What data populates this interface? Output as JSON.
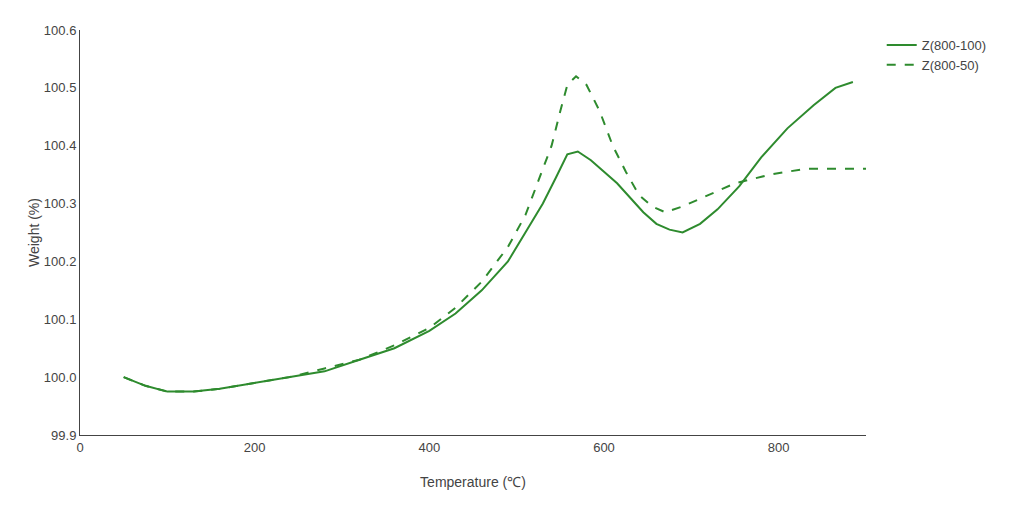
{
  "chart_data": {
    "type": "line",
    "xlabel": "Temperature (℃)",
    "ylabel": "Weight (%)",
    "xlim": [
      0,
      900
    ],
    "ylim": [
      99.9,
      100.6
    ],
    "xticks": [
      0,
      200,
      400,
      600,
      800
    ],
    "yticks": [
      99.9,
      {
        "value": 100.0,
        "label": "100.0"
      },
      100.1,
      100.2,
      100.3,
      100.4,
      100.5,
      100.6
    ],
    "grid": false,
    "legend": "upper right",
    "series": [
      {
        "name": "Z(800-100)",
        "color": "#2e8b2e",
        "line_style": "solid",
        "x": [
          50,
          75,
          100,
          130,
          160,
          200,
          240,
          280,
          320,
          360,
          400,
          430,
          460,
          490,
          510,
          530,
          545,
          558,
          570,
          585,
          600,
          615,
          630,
          645,
          660,
          675,
          690,
          710,
          730,
          755,
          780,
          810,
          840,
          865,
          885
        ],
        "values": [
          100.0,
          99.985,
          99.975,
          99.975,
          99.98,
          99.99,
          100.0,
          100.01,
          100.03,
          100.05,
          100.08,
          100.11,
          100.15,
          100.2,
          100.25,
          100.3,
          100.345,
          100.385,
          100.39,
          100.375,
          100.355,
          100.335,
          100.31,
          100.285,
          100.265,
          100.255,
          100.25,
          100.265,
          100.29,
          100.33,
          100.38,
          100.43,
          100.47,
          100.5,
          100.51
        ]
      },
      {
        "name": "Z(800-50)",
        "color": "#2e8b2e",
        "line_style": "dashed",
        "x": [
          50,
          75,
          100,
          130,
          160,
          200,
          240,
          280,
          320,
          360,
          400,
          430,
          460,
          490,
          510,
          525,
          540,
          550,
          558,
          568,
          580,
          595,
          610,
          625,
          640,
          655,
          670,
          690,
          720,
          750,
          790,
          830,
          860,
          880,
          900
        ],
        "values": [
          100.0,
          99.985,
          99.975,
          99.975,
          99.98,
          99.99,
          100.0,
          100.015,
          100.03,
          100.055,
          100.085,
          100.12,
          100.165,
          100.225,
          100.28,
          100.34,
          100.4,
          100.46,
          100.505,
          100.52,
          100.505,
          100.46,
          100.4,
          100.355,
          100.315,
          100.295,
          100.285,
          100.295,
          100.315,
          100.335,
          100.35,
          100.36,
          100.36,
          100.36,
          100.36
        ]
      }
    ]
  }
}
